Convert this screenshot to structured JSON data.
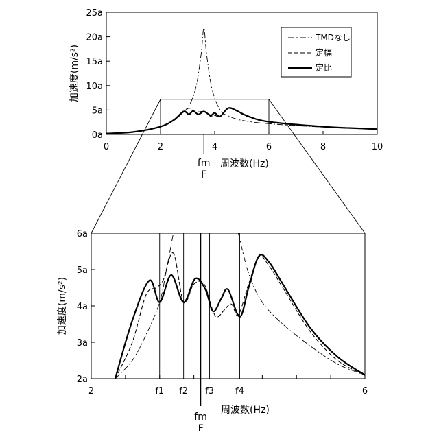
{
  "chart_data": [
    {
      "type": "line",
      "xlabel": "周波数(Hz)",
      "ylabel": "加速度(m/s²)",
      "xlim": [
        0,
        10
      ],
      "ylim": [
        0,
        25
      ],
      "x_ticks": [
        "0",
        "2",
        "4",
        "6",
        "8",
        "10"
      ],
      "y_ticks": [
        "0a",
        "5a",
        "10a",
        "15a",
        "20a",
        "25a"
      ],
      "annotations": [
        {
          "line1": "fm",
          "line2": "F",
          "x": 3.6
        }
      ],
      "zoom_window": {
        "x": [
          2,
          6
        ],
        "y": [
          0,
          7.2
        ]
      },
      "legend": {
        "placement": "top-right",
        "entries": [
          "TMDなし",
          "定幅",
          "定比"
        ]
      },
      "series": [
        {
          "name": "TMDなし",
          "style": "dash-dot",
          "x": [
            0,
            1,
            2,
            2.5,
            3,
            3.3,
            3.5,
            3.6,
            3.7,
            3.9,
            4.2,
            4.5,
            5,
            6,
            8,
            10
          ],
          "values": [
            0.2,
            0.5,
            1.6,
            3.0,
            5.5,
            9.5,
            16.5,
            21.8,
            16.5,
            9.3,
            5.0,
            3.8,
            2.9,
            2.2,
            1.5,
            1.1
          ]
        },
        {
          "name": "定幅",
          "style": "dashed",
          "x": [
            0,
            1,
            2,
            2.5,
            2.85,
            3.05,
            3.2,
            3.4,
            3.6,
            3.85,
            4.0,
            4.2,
            4.5,
            4.8,
            5.2,
            6,
            8,
            10
          ],
          "values": [
            0.2,
            0.5,
            1.6,
            2.9,
            4.6,
            5.4,
            4.9,
            4.6,
            4.7,
            3.7,
            3.9,
            3.7,
            5.3,
            4.8,
            3.7,
            2.6,
            1.6,
            1.1
          ]
        },
        {
          "name": "定比",
          "style": "solid",
          "x": [
            0,
            1,
            2,
            2.5,
            2.85,
            3.05,
            3.2,
            3.4,
            3.6,
            3.85,
            4.0,
            4.2,
            4.5,
            4.8,
            5.2,
            6,
            8,
            10
          ],
          "values": [
            0.2,
            0.5,
            1.6,
            3.0,
            4.7,
            4.1,
            4.8,
            4.1,
            4.7,
            3.9,
            4.4,
            3.7,
            5.4,
            4.9,
            3.8,
            2.6,
            1.6,
            1.1
          ]
        }
      ]
    },
    {
      "type": "line",
      "xlabel": "周波数(Hz)",
      "ylabel": "加速度(m/s²)",
      "xlim": [
        2,
        6
      ],
      "ylim": [
        2,
        6
      ],
      "x_ticks": [
        "2",
        "6"
      ],
      "y_ticks": [
        "2a",
        "3a",
        "4a",
        "5a",
        "6a"
      ],
      "vlines": [
        {
          "label": "f1",
          "x": 3.0
        },
        {
          "label": "f2",
          "x": 3.35
        },
        {
          "label": "fm",
          "label2": "F",
          "x": 3.6
        },
        {
          "label": "f3",
          "x": 3.73
        },
        {
          "label": "f4",
          "x": 4.17
        }
      ],
      "series": [
        {
          "name": "TMDなし",
          "style": "dash-dot",
          "x": [
            2.35,
            2.6,
            2.8,
            3.0,
            3.1,
            3.2
          ],
          "values": [
            2.0,
            2.5,
            3.2,
            4.1,
            5.0,
            6.0
          ],
          "x2": [
            4.15,
            4.3,
            4.5,
            4.8,
            5.2,
            5.6,
            6.0
          ],
          "values2": [
            6.0,
            4.9,
            4.1,
            3.5,
            2.9,
            2.4,
            2.1
          ]
        },
        {
          "name": "定幅",
          "style": "dashed",
          "x": [
            2.35,
            2.6,
            2.8,
            2.95,
            3.05,
            3.2,
            3.35,
            3.5,
            3.65,
            3.78,
            3.85,
            3.95,
            4.05,
            4.15,
            4.3,
            4.45,
            4.6,
            4.8,
            5.2,
            5.6,
            6.0
          ],
          "values": [
            2.0,
            3.0,
            4.3,
            4.5,
            4.7,
            5.45,
            4.1,
            4.6,
            4.6,
            3.85,
            3.7,
            3.9,
            4.05,
            3.75,
            4.6,
            5.35,
            5.1,
            4.5,
            3.3,
            2.5,
            2.1
          ]
        },
        {
          "name": "定比",
          "style": "solid",
          "x": [
            2.35,
            2.6,
            2.85,
            3.0,
            3.17,
            3.35,
            3.52,
            3.67,
            3.78,
            3.9,
            4.0,
            4.17,
            4.3,
            4.45,
            4.6,
            4.8,
            5.2,
            5.6,
            6.0
          ],
          "values": [
            2.0,
            3.6,
            4.7,
            4.1,
            4.85,
            4.1,
            4.75,
            4.45,
            3.85,
            4.2,
            4.45,
            3.7,
            4.5,
            5.37,
            5.2,
            4.6,
            3.4,
            2.6,
            2.1
          ]
        }
      ]
    }
  ]
}
